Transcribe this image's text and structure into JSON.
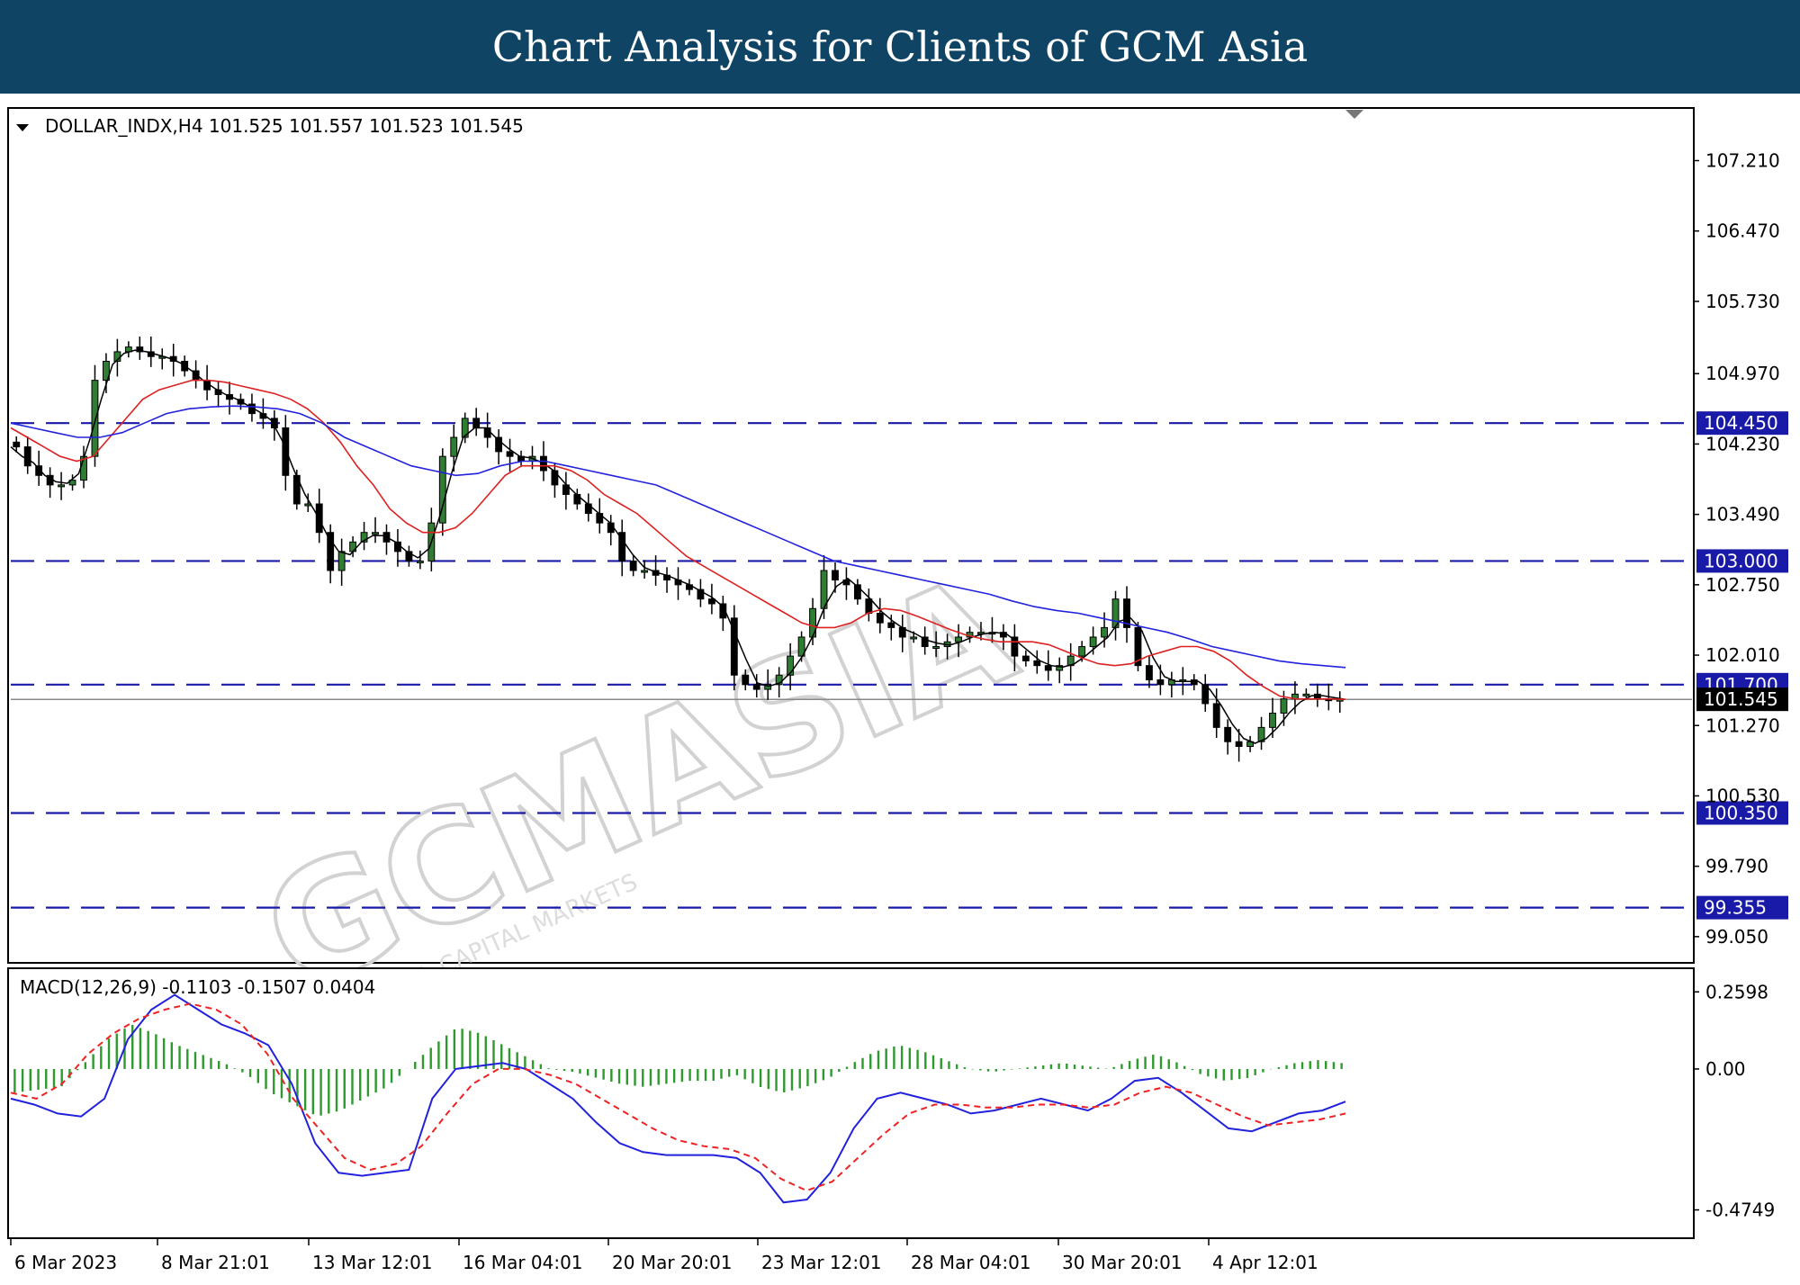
{
  "banner": {
    "title": "Chart Analysis for Clients of GCM Asia"
  },
  "chart_data": {
    "type": "candlestick",
    "symbol_header": "DOLLAR_INDX,H4  101.525 101.557 101.523 101.545",
    "price_axis": {
      "ylim": [
        98.85,
        107.65
      ],
      "ticks": [
        "107.210",
        "106.470",
        "105.730",
        "104.970",
        "104.230",
        "103.490",
        "102.750",
        "102.010",
        "101.270",
        "100.530",
        "99.790",
        "99.050"
      ],
      "tick_values": [
        107.21,
        106.47,
        105.73,
        104.97,
        104.23,
        103.49,
        102.75,
        102.01,
        101.27,
        100.53,
        99.79,
        99.05
      ]
    },
    "horizontal_levels": [
      {
        "label": "104.450",
        "value": 104.45
      },
      {
        "label": "103.000",
        "value": 103.0
      },
      {
        "label": "101.700",
        "value": 101.7
      },
      {
        "label": "100.350",
        "value": 100.35
      },
      {
        "label": "99.355",
        "value": 99.355
      }
    ],
    "last_price": {
      "label": "101.545",
      "value": 101.545
    },
    "date_axis": {
      "labels": [
        "6 Mar 2023",
        "8 Mar 21:01",
        "13 Mar 12:01",
        "16 Mar 04:01",
        "20 Mar 20:01",
        "23 Mar 12:01",
        "28 Mar 04:01",
        "30 Mar 20:01",
        "4 Apr 12:01"
      ]
    },
    "ohlc_close_path": [
      104.2,
      104.0,
      103.9,
      103.8,
      103.8,
      103.85,
      104.1,
      104.9,
      105.1,
      105.2,
      105.25,
      105.2,
      105.15,
      105.15,
      105.1,
      105.0,
      104.9,
      104.8,
      104.75,
      104.7,
      104.65,
      104.55,
      104.5,
      104.4,
      103.9,
      103.6,
      103.6,
      103.3,
      102.9,
      103.1,
      103.2,
      103.3,
      103.3,
      103.2,
      103.1,
      103.0,
      103.0,
      103.4,
      104.1,
      104.3,
      104.5,
      104.4,
      104.3,
      104.15,
      104.1,
      104.05,
      104.1,
      103.95,
      103.8,
      103.7,
      103.6,
      103.5,
      103.4,
      103.3,
      103.0,
      102.9,
      102.9,
      102.85,
      102.8,
      102.75,
      102.7,
      102.6,
      102.55,
      102.4,
      101.8,
      101.7,
      101.65,
      101.7,
      101.8,
      102.0,
      102.2,
      102.5,
      102.9,
      102.8,
      102.75,
      102.6,
      102.45,
      102.35,
      102.3,
      102.2,
      102.2,
      102.1,
      102.1,
      102.15,
      102.2,
      102.25,
      102.25,
      102.25,
      102.2,
      102.0,
      101.95,
      101.9,
      101.85,
      101.9,
      102.0,
      102.1,
      102.2,
      102.3,
      102.6,
      102.3,
      101.9,
      101.75,
      101.7,
      101.75,
      101.75,
      101.7,
      101.5,
      101.25,
      101.1,
      101.05,
      101.1,
      101.25,
      101.4,
      101.55,
      101.6,
      101.6,
      101.55,
      101.54,
      101.545
    ],
    "ma_fast_path": [
      104.4,
      104.3,
      104.2,
      104.1,
      104.05,
      104.1,
      104.3,
      104.5,
      104.7,
      104.8,
      104.85,
      104.9,
      104.9,
      104.88,
      104.84,
      104.8,
      104.76,
      104.7,
      104.6,
      104.45,
      104.25,
      104.0,
      103.8,
      103.55,
      103.4,
      103.3,
      103.3,
      103.35,
      103.5,
      103.7,
      103.9,
      104.0,
      104.0,
      104.0,
      103.95,
      103.85,
      103.7,
      103.6,
      103.5,
      103.35,
      103.2,
      103.05,
      102.95,
      102.85,
      102.75,
      102.65,
      102.55,
      102.45,
      102.35,
      102.3,
      102.3,
      102.35,
      102.45,
      102.5,
      102.48,
      102.42,
      102.35,
      102.28,
      102.22,
      102.18,
      102.15,
      102.15,
      102.15,
      102.12,
      102.05,
      101.98,
      101.92,
      101.9,
      101.92,
      102.0,
      102.05,
      102.1,
      102.1,
      102.05,
      101.95,
      101.8,
      101.68,
      101.58,
      101.55,
      101.55,
      101.55,
      101.545
    ],
    "ma_slow_path": [
      104.45,
      104.4,
      104.35,
      104.3,
      104.3,
      104.35,
      104.45,
      104.55,
      104.6,
      104.62,
      104.63,
      104.62,
      104.6,
      104.55,
      104.45,
      104.3,
      104.2,
      104.1,
      104.0,
      103.95,
      103.9,
      103.92,
      104.0,
      104.05,
      104.05,
      104.0,
      103.95,
      103.9,
      103.85,
      103.8,
      103.7,
      103.6,
      103.5,
      103.4,
      103.3,
      103.2,
      103.1,
      103.0,
      102.95,
      102.9,
      102.85,
      102.8,
      102.75,
      102.7,
      102.65,
      102.58,
      102.52,
      102.48,
      102.45,
      102.4,
      102.35,
      102.3,
      102.25,
      102.18,
      102.1,
      102.05,
      102.0,
      101.95,
      101.92,
      101.9,
      101.88
    ],
    "macd": {
      "header": "MACD(12,26,9) -0.1103 -0.1507 0.0404",
      "ylim": [
        -0.54,
        0.3
      ],
      "ticks": [
        "0.2598",
        "0.00",
        "-0.4749"
      ],
      "tick_values": [
        0.2598,
        0.0,
        -0.4749
      ],
      "macd_path": [
        -0.1,
        -0.12,
        -0.15,
        -0.16,
        -0.1,
        0.1,
        0.2,
        0.25,
        0.2,
        0.15,
        0.12,
        0.08,
        -0.05,
        -0.25,
        -0.35,
        -0.36,
        -0.35,
        -0.34,
        -0.1,
        0.0,
        0.01,
        0.02,
        0.0,
        -0.05,
        -0.1,
        -0.18,
        -0.25,
        -0.28,
        -0.29,
        -0.29,
        -0.29,
        -0.3,
        -0.35,
        -0.45,
        -0.44,
        -0.35,
        -0.2,
        -0.1,
        -0.08,
        -0.1,
        -0.12,
        -0.15,
        -0.14,
        -0.12,
        -0.1,
        -0.12,
        -0.14,
        -0.1,
        -0.04,
        -0.03,
        -0.08,
        -0.14,
        -0.2,
        -0.21,
        -0.18,
        -0.15,
        -0.14,
        -0.11
      ],
      "signal_path": [
        -0.08,
        -0.1,
        -0.05,
        0.05,
        0.12,
        0.17,
        0.2,
        0.22,
        0.2,
        0.15,
        0.05,
        -0.1,
        -0.2,
        -0.3,
        -0.34,
        -0.32,
        -0.26,
        -0.15,
        -0.05,
        0.0,
        0.0,
        -0.02,
        -0.05,
        -0.1,
        -0.15,
        -0.2,
        -0.24,
        -0.26,
        -0.27,
        -0.3,
        -0.37,
        -0.41,
        -0.38,
        -0.3,
        -0.22,
        -0.15,
        -0.12,
        -0.12,
        -0.13,
        -0.13,
        -0.12,
        -0.12,
        -0.13,
        -0.12,
        -0.08,
        -0.06,
        -0.08,
        -0.12,
        -0.16,
        -0.19,
        -0.18,
        -0.17,
        -0.15
      ],
      "histogram_path": [
        -0.08,
        -0.07,
        -0.06,
        0.02,
        0.1,
        0.15,
        0.12,
        0.08,
        0.05,
        0.02,
        -0.02,
        -0.08,
        -0.12,
        -0.16,
        -0.14,
        -0.1,
        -0.06,
        0.01,
        0.08,
        0.14,
        0.12,
        0.08,
        0.04,
        0.0,
        -0.01,
        -0.03,
        -0.05,
        -0.06,
        -0.05,
        -0.04,
        -0.04,
        -0.02,
        -0.06,
        -0.08,
        -0.06,
        -0.03,
        0.02,
        0.06,
        0.08,
        0.06,
        0.03,
        0.0,
        -0.01,
        0.0,
        0.01,
        0.02,
        0.01,
        0.0,
        0.03,
        0.05,
        0.02,
        -0.02,
        -0.04,
        -0.03,
        0.0,
        0.02,
        0.03,
        0.02
      ]
    }
  },
  "colors": {
    "banner": "#104465",
    "bull": "#2e7d32",
    "level": "#1a1aa8",
    "ma_fast": "#dd2222",
    "ma_slow": "#2222dd",
    "macd": "#2222dd",
    "signal": "#ee2222",
    "hist": "#2e9a2e"
  },
  "watermark": {
    "text": "GCMASIA",
    "sub": "GLOBAL CAPITAL MARKETS"
  }
}
